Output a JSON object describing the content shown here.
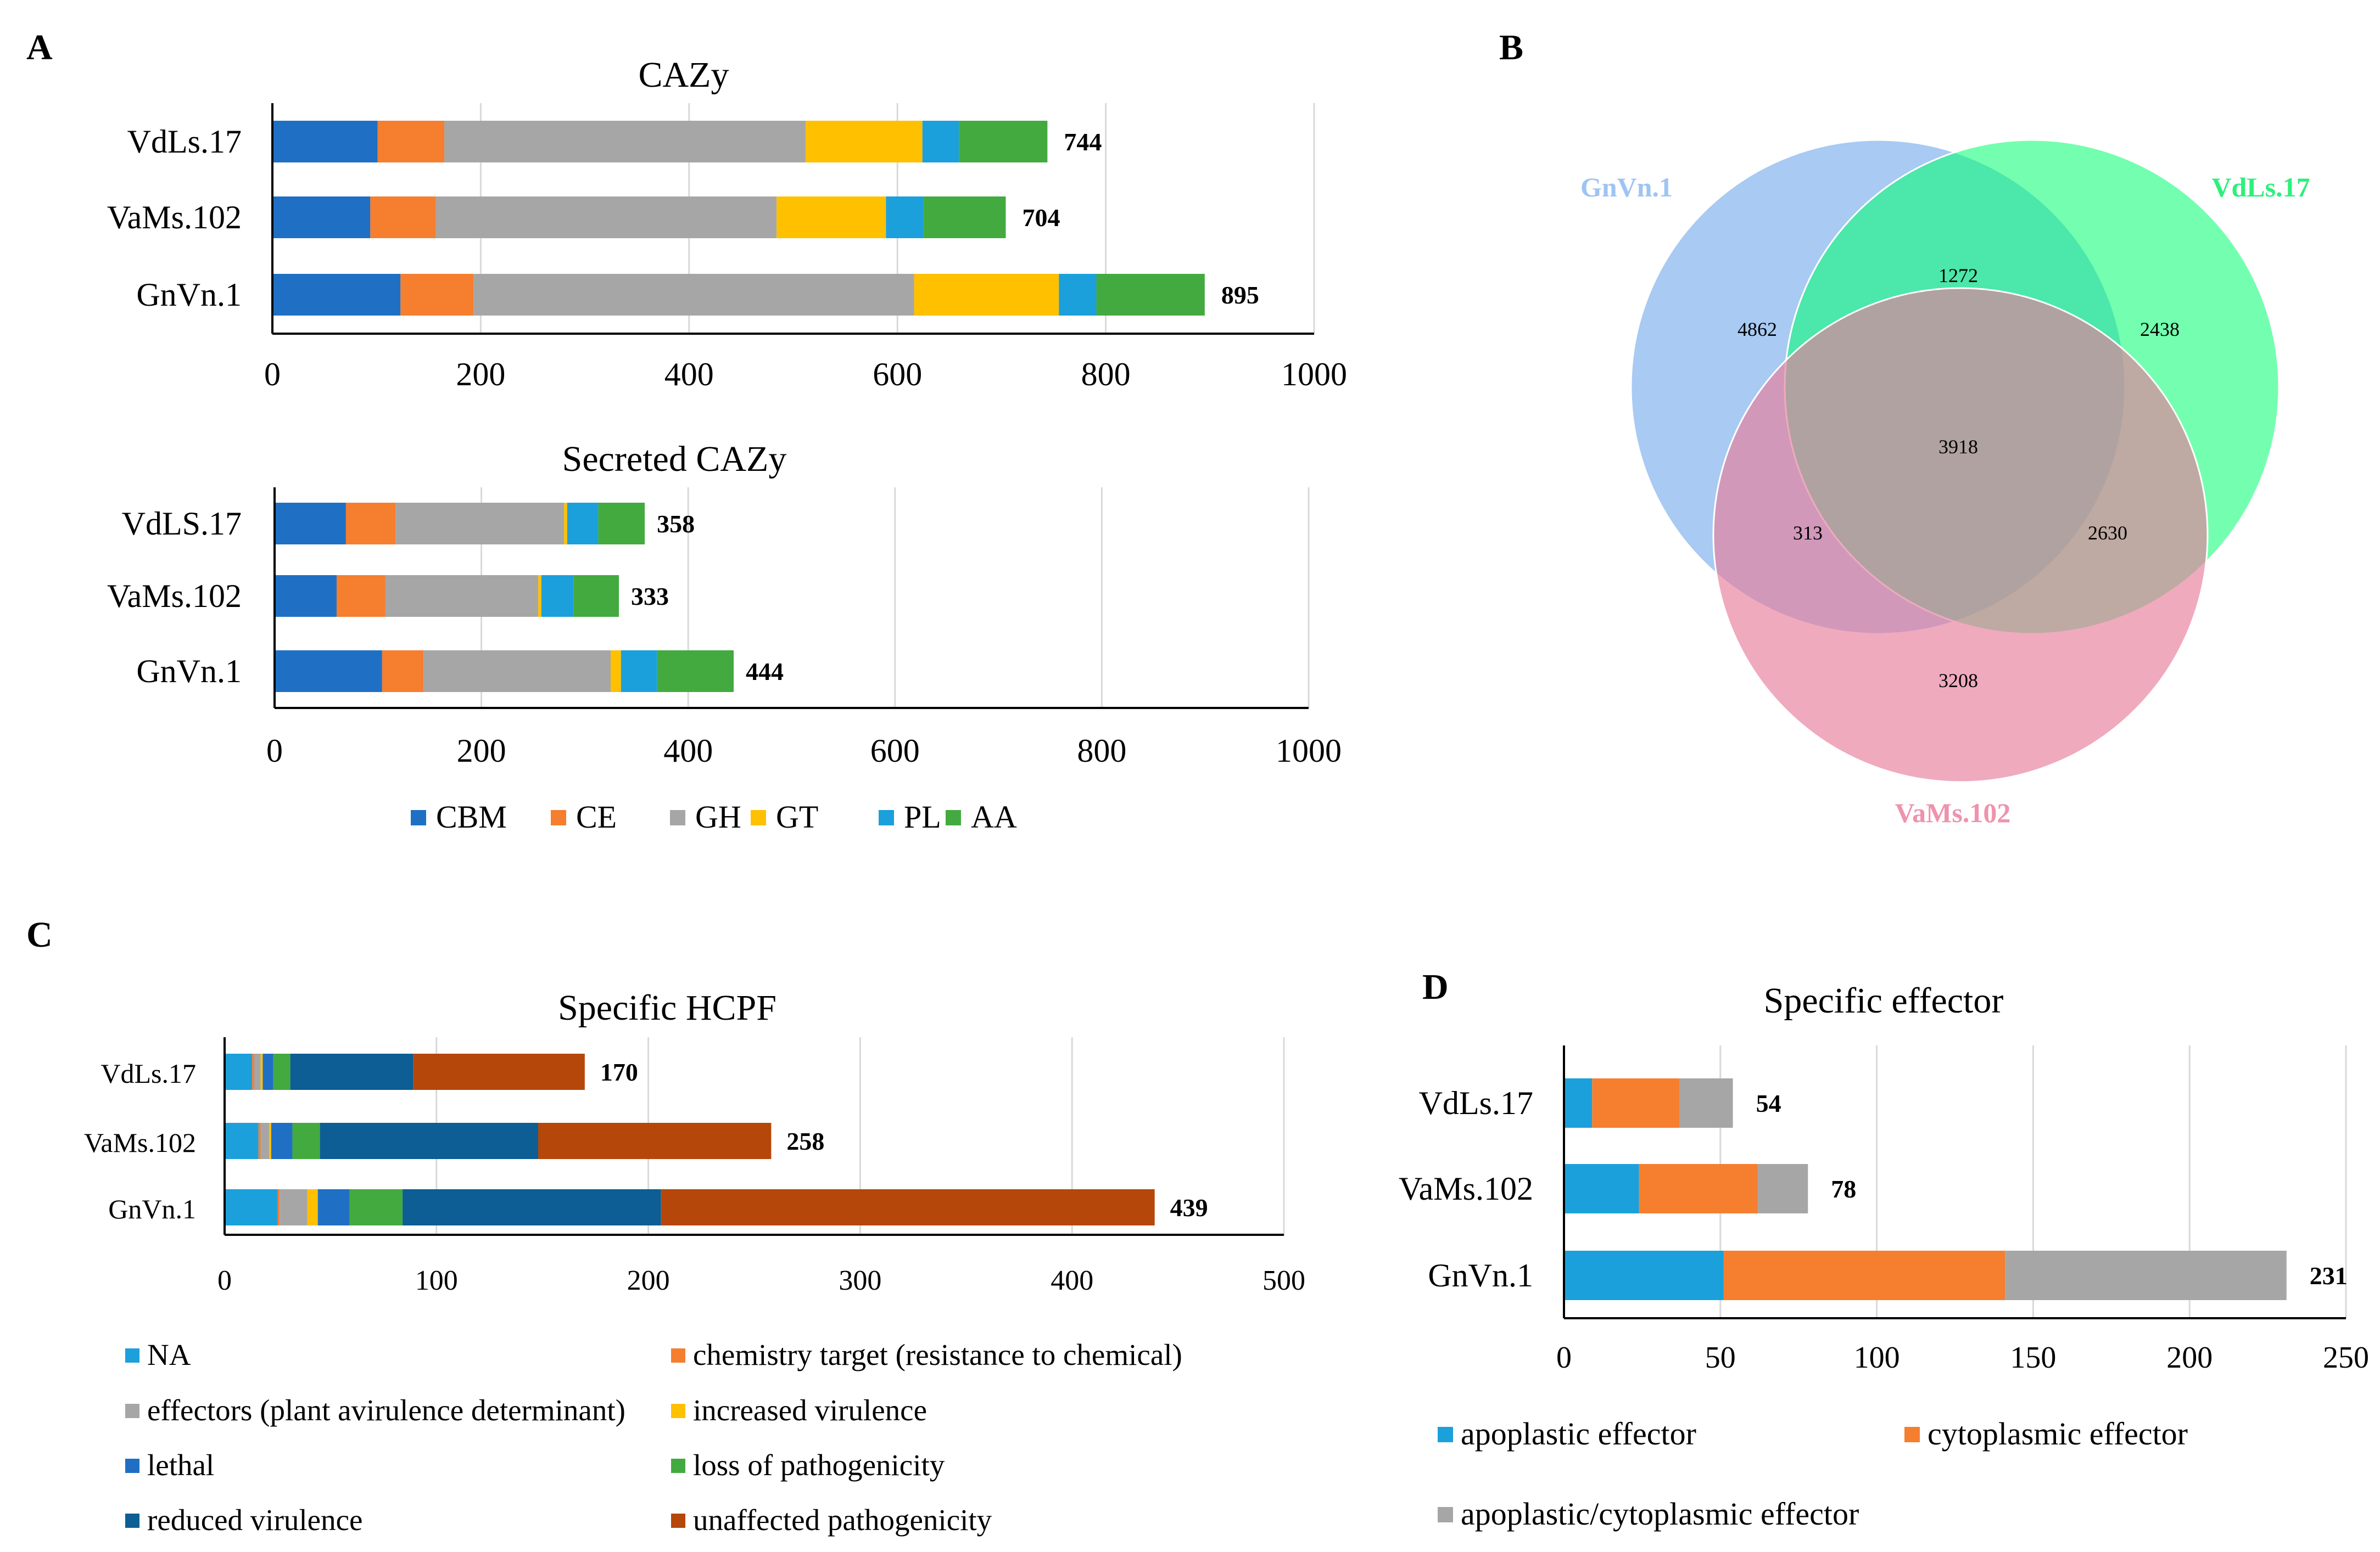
{
  "panels": {
    "A": "A",
    "B": "B",
    "C": "C",
    "D": "D"
  },
  "legends": {
    "cazy": [
      {
        "label": "CBM",
        "color": "#1F70C4"
      },
      {
        "label": "CE",
        "color": "#F57E2F"
      },
      {
        "label": "GH",
        "color": "#A6A6A6"
      },
      {
        "label": "GT",
        "color": "#FFC000"
      },
      {
        "label": "PL",
        "color": "#1BA0DB"
      },
      {
        "label": "AA",
        "color": "#43AA3F"
      }
    ],
    "hcpf": [
      {
        "label": "NA",
        "color": "#1BA0DB"
      },
      {
        "label": "chemistry target (resistance to chemical)",
        "color": "#F57E2F"
      },
      {
        "label": "effectors (plant avirulence determinant)",
        "color": "#A6A6A6"
      },
      {
        "label": "increased virulence",
        "color": "#FFC000"
      },
      {
        "label": "lethal",
        "color": "#1F70C4"
      },
      {
        "label": "loss of pathogenicity",
        "color": "#43AA3F"
      },
      {
        "label": "reduced virulence",
        "color": "#0C5E94"
      },
      {
        "label": "unaffected pathogenicity",
        "color": "#B5470A"
      }
    ],
    "effector": [
      {
        "label": "apoplastic effector",
        "color": "#1BA0DB"
      },
      {
        "label": "cytoplasmic effector",
        "color": "#F57E2F"
      },
      {
        "label": "apoplastic/cytoplasmic effector",
        "color": "#A6A6A6"
      }
    ]
  },
  "chart_data": [
    {
      "id": "cazy",
      "type": "bar",
      "orientation": "horizontal",
      "stacked": true,
      "title": "CAZy",
      "categories": [
        "VdLs.17",
        "VaMs.102",
        "GnVn.1"
      ],
      "series": [
        {
          "name": "CBM",
          "values": [
            101,
            94,
            123
          ]
        },
        {
          "name": "CE",
          "values": [
            64,
            63,
            70
          ]
        },
        {
          "name": "GH",
          "values": [
            347,
            327,
            423
          ]
        },
        {
          "name": "GT",
          "values": [
            112,
            105,
            139
          ]
        },
        {
          "name": "PL",
          "values": [
            35,
            36,
            36
          ]
        },
        {
          "name": "AA",
          "values": [
            85,
            79,
            104
          ]
        }
      ],
      "totals": [
        "744",
        "704",
        "895"
      ],
      "xlim": [
        0,
        1000
      ],
      "xticks": [
        "0",
        "200",
        "400",
        "600",
        "800",
        "1000"
      ],
      "grid": true
    },
    {
      "id": "secreted",
      "type": "bar",
      "orientation": "horizontal",
      "stacked": true,
      "title": "Secreted CAZy",
      "categories": [
        "VdLS.17",
        "VaMs.102",
        "GnVn.1"
      ],
      "series": [
        {
          "name": "CBM",
          "values": [
            69,
            60,
            104
          ]
        },
        {
          "name": "CE",
          "values": [
            48,
            47,
            40
          ]
        },
        {
          "name": "GH",
          "values": [
            163,
            148,
            181
          ]
        },
        {
          "name": "GT",
          "values": [
            3,
            3,
            10
          ]
        },
        {
          "name": "PL",
          "values": [
            30,
            31,
            35
          ]
        },
        {
          "name": "AA",
          "values": [
            45,
            44,
            74
          ]
        }
      ],
      "totals": [
        "358",
        "333",
        "444"
      ],
      "xlim": [
        0,
        1000
      ],
      "xticks": [
        "0",
        "200",
        "400",
        "600",
        "800",
        "1000"
      ],
      "grid": true
    },
    {
      "id": "venn",
      "type": "venn",
      "sets": [
        "GnVn.1",
        "VdLs.17",
        "VaMs.102"
      ],
      "regions": {
        "only_GnVn": "4862",
        "only_VdLs": "2438",
        "only_VaMs": "3208",
        "GnVn_VdLs": "1272",
        "GnVn_VaMs": "313",
        "VdLs_VaMs": "2630",
        "all": "3918"
      }
    },
    {
      "id": "hcpf",
      "type": "bar",
      "orientation": "horizontal",
      "stacked": true,
      "title": "Specific HCPF",
      "categories": [
        "VdLs.17",
        "VaMs.102",
        "GnVn.1"
      ],
      "series": [
        {
          "name": "NA",
          "values": [
            13,
            16,
            25
          ]
        },
        {
          "name": "chemistry target (resistance to chemical)",
          "values": [
            1,
            1,
            1
          ]
        },
        {
          "name": "effectors (plant avirulence determinant)",
          "values": [
            3,
            4,
            13
          ]
        },
        {
          "name": "increased virulence",
          "values": [
            1,
            1,
            5
          ]
        },
        {
          "name": "lethal",
          "values": [
            5,
            10,
            15
          ]
        },
        {
          "name": "loss of pathogenicity",
          "values": [
            8,
            13,
            25
          ]
        },
        {
          "name": "reduced virulence",
          "values": [
            58,
            103,
            122
          ]
        },
        {
          "name": "unaffected pathogenicity",
          "values": [
            81,
            110,
            233
          ]
        }
      ],
      "totals": [
        "170",
        "258",
        "439"
      ],
      "xlim": [
        0,
        500
      ],
      "xticks": [
        "0",
        "100",
        "200",
        "300",
        "400",
        "500"
      ],
      "grid": true
    },
    {
      "id": "effector",
      "type": "bar",
      "orientation": "horizontal",
      "stacked": true,
      "title": "Specific effector",
      "categories": [
        "VdLs.17",
        "VaMs.102",
        "GnVn.1"
      ],
      "series": [
        {
          "name": "apoplastic effector",
          "values": [
            9,
            24,
            51
          ]
        },
        {
          "name": "cytoplasmic effector",
          "values": [
            28,
            38,
            90
          ]
        },
        {
          "name": "apoplastic/cytoplasmic effector",
          "values": [
            17,
            16,
            90
          ]
        }
      ],
      "totals": [
        "54",
        "78",
        "231"
      ],
      "xlim": [
        0,
        250
      ],
      "xticks": [
        "0",
        "50",
        "100",
        "150",
        "200",
        "250"
      ],
      "grid": true
    }
  ]
}
